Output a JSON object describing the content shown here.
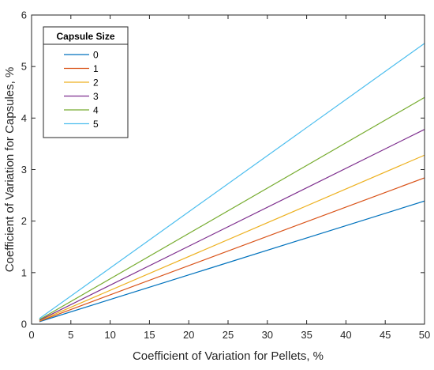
{
  "chart_data": {
    "type": "line",
    "xlabel": "Coefficient of Variation for Pellets, %",
    "ylabel": "Coefficient of Variation for Capsules, %",
    "xlim": [
      0,
      50
    ],
    "ylim": [
      0,
      6
    ],
    "xticks": [
      0,
      5,
      10,
      15,
      20,
      25,
      30,
      35,
      40,
      45,
      50
    ],
    "yticks": [
      0,
      1,
      2,
      3,
      4,
      5,
      6
    ],
    "grid": false,
    "legend": {
      "title": "Capsule Size",
      "placement": "top-left"
    },
    "series": [
      {
        "name": "0",
        "color": "#0072BD",
        "x": [
          1,
          50
        ],
        "y": [
          0.048,
          2.39
        ]
      },
      {
        "name": "1",
        "color": "#D95319",
        "x": [
          1,
          50
        ],
        "y": [
          0.057,
          2.84
        ]
      },
      {
        "name": "2",
        "color": "#EDB120",
        "x": [
          1,
          50
        ],
        "y": [
          0.066,
          3.28
        ]
      },
      {
        "name": "3",
        "color": "#7E2F8E",
        "x": [
          1,
          50
        ],
        "y": [
          0.076,
          3.78
        ]
      },
      {
        "name": "4",
        "color": "#77AC30",
        "x": [
          1,
          50
        ],
        "y": [
          0.088,
          4.4
        ]
      },
      {
        "name": "5",
        "color": "#4DBEEE",
        "x": [
          1,
          50
        ],
        "y": [
          0.109,
          5.45
        ]
      }
    ]
  }
}
